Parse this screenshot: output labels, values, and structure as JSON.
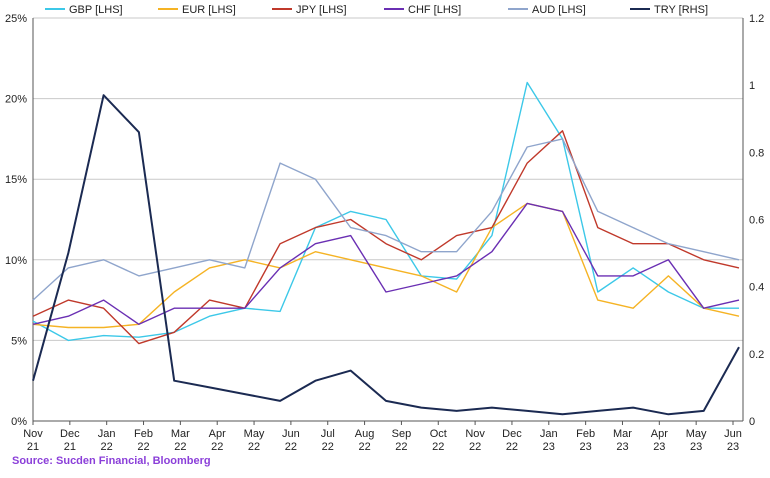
{
  "source": "Source: Sucden Financial, Bloomberg",
  "chart_data": {
    "type": "line",
    "title": "",
    "xlabel": "",
    "ylabel_left": "",
    "ylabel_right": "",
    "y_left": {
      "range": [
        0,
        25
      ],
      "ticks": [
        "0%",
        "5%",
        "10%",
        "15%",
        "20%",
        "25%"
      ],
      "tick_values": [
        0,
        5,
        10,
        15,
        20,
        25
      ]
    },
    "y_right": {
      "range": [
        0,
        1.2
      ],
      "ticks": [
        "0",
        "0.2",
        "0.4",
        "0.6",
        "0.8",
        "1",
        "1.2"
      ],
      "tick_values": [
        0,
        0.2,
        0.4,
        0.6,
        0.8,
        1.0,
        1.2
      ]
    },
    "x_ticks": [
      {
        "month": "Nov",
        "year": "21"
      },
      {
        "month": "Dec",
        "year": "21"
      },
      {
        "month": "Jan",
        "year": "22"
      },
      {
        "month": "Feb",
        "year": "22"
      },
      {
        "month": "Mar",
        "year": "22"
      },
      {
        "month": "Apr",
        "year": "22"
      },
      {
        "month": "May",
        "year": "22"
      },
      {
        "month": "Jun",
        "year": "22"
      },
      {
        "month": "Jul",
        "year": "22"
      },
      {
        "month": "Aug",
        "year": "22"
      },
      {
        "month": "Sep",
        "year": "22"
      },
      {
        "month": "Oct",
        "year": "22"
      },
      {
        "month": "Nov",
        "year": "22"
      },
      {
        "month": "Dec",
        "year": "22"
      },
      {
        "month": "Jan",
        "year": "23"
      },
      {
        "month": "Feb",
        "year": "23"
      },
      {
        "month": "Mar",
        "year": "23"
      },
      {
        "month": "Apr",
        "year": "23"
      },
      {
        "month": "May",
        "year": "23"
      },
      {
        "month": "Jun",
        "year": "23"
      }
    ],
    "gridlines": "horizontal",
    "legend": "top",
    "series": [
      {
        "name": "GBP [LHS]",
        "axis": "left",
        "color": "#3cc8e8",
        "values": [
          6.2,
          5.0,
          5.3,
          5.2,
          5.5,
          6.5,
          7.0,
          6.8,
          12.0,
          13.0,
          12.5,
          9.0,
          8.8,
          11.5,
          21.0,
          17.5,
          8.0,
          9.5,
          8.0,
          7.0,
          7.0
        ]
      },
      {
        "name": "EUR [LHS]",
        "axis": "left",
        "color": "#f5b324",
        "values": [
          6.0,
          5.8,
          5.8,
          6.0,
          8.0,
          9.5,
          10.0,
          9.5,
          10.5,
          10.0,
          9.5,
          9.0,
          8.0,
          12.0,
          13.5,
          13.0,
          7.5,
          7.0,
          9.0,
          7.0,
          6.5
        ]
      },
      {
        "name": "JPY [LHS]",
        "axis": "left",
        "color": "#c0392b",
        "values": [
          6.5,
          7.5,
          7.0,
          4.8,
          5.5,
          7.5,
          7.0,
          11.0,
          12.0,
          12.5,
          11.0,
          10.0,
          11.5,
          12.0,
          16.0,
          18.0,
          12.0,
          11.0,
          11.0,
          10.0,
          9.5
        ]
      },
      {
        "name": "CHF [LHS]",
        "axis": "left",
        "color": "#6a2fb3",
        "values": [
          6.0,
          6.5,
          7.5,
          6.0,
          7.0,
          7.0,
          7.0,
          9.5,
          11.0,
          11.5,
          8.0,
          8.5,
          9.0,
          10.5,
          13.5,
          13.0,
          9.0,
          9.0,
          10.0,
          7.0,
          7.5
        ]
      },
      {
        "name": "AUD [LHS]",
        "axis": "left",
        "color": "#8fa5cc",
        "values": [
          7.5,
          9.5,
          10.0,
          9.0,
          9.5,
          10.0,
          9.5,
          16.0,
          15.0,
          12.0,
          11.5,
          10.5,
          10.5,
          13.0,
          17.0,
          17.5,
          13.0,
          12.0,
          11.0,
          10.5,
          10.0
        ]
      },
      {
        "name": "TRY [RHS]",
        "axis": "right",
        "color": "#1b2a52",
        "values": [
          0.12,
          0.5,
          0.97,
          0.86,
          0.12,
          0.1,
          0.08,
          0.06,
          0.12,
          0.15,
          0.06,
          0.04,
          0.03,
          0.04,
          0.03,
          0.02,
          0.03,
          0.04,
          0.02,
          0.03,
          0.22
        ]
      }
    ]
  }
}
